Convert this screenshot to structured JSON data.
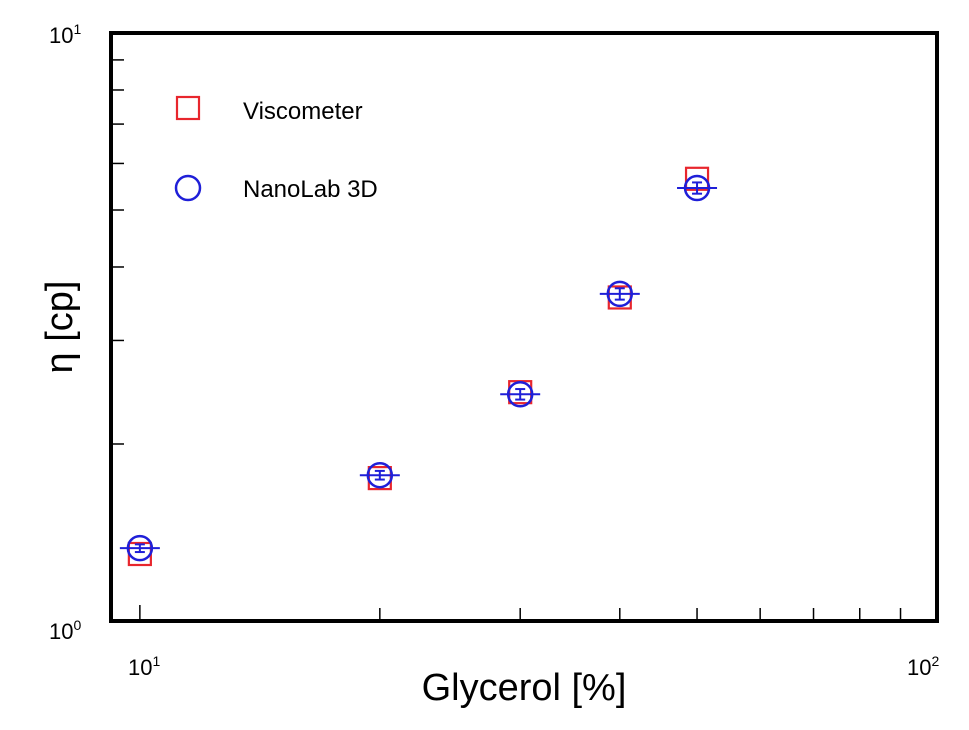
{
  "chart_data": {
    "type": "scatter",
    "xlabel": "Glycerol [%]",
    "ylabel": "η [cp]",
    "xscale": "log",
    "yscale": "log",
    "xlim": [
      9.2,
      100
    ],
    "ylim": [
      1,
      10
    ],
    "x_tick_labels": [
      {
        "base": "10",
        "exp": "1",
        "value": 10
      },
      {
        "base": "10",
        "exp": "2",
        "value": 100
      }
    ],
    "y_tick_labels": [
      {
        "base": "10",
        "exp": "0",
        "value": 1
      },
      {
        "base": "10",
        "exp": "1",
        "value": 10
      }
    ],
    "legend_position": "top-left",
    "series": [
      {
        "name": "Viscometer",
        "marker": "square",
        "color": "#e8262d",
        "x": [
          10,
          20,
          30,
          40,
          50
        ],
        "y": [
          1.3,
          1.75,
          2.45,
          3.55,
          5.65
        ]
      },
      {
        "name": "NanoLab 3D",
        "marker": "circle",
        "color": "#1f1fd8",
        "x": [
          10,
          20,
          30,
          40,
          50
        ],
        "y": [
          1.33,
          1.77,
          2.43,
          3.6,
          5.45
        ],
        "error": [
          0.02,
          0.03,
          0.05,
          0.08,
          0.12
        ]
      }
    ]
  }
}
